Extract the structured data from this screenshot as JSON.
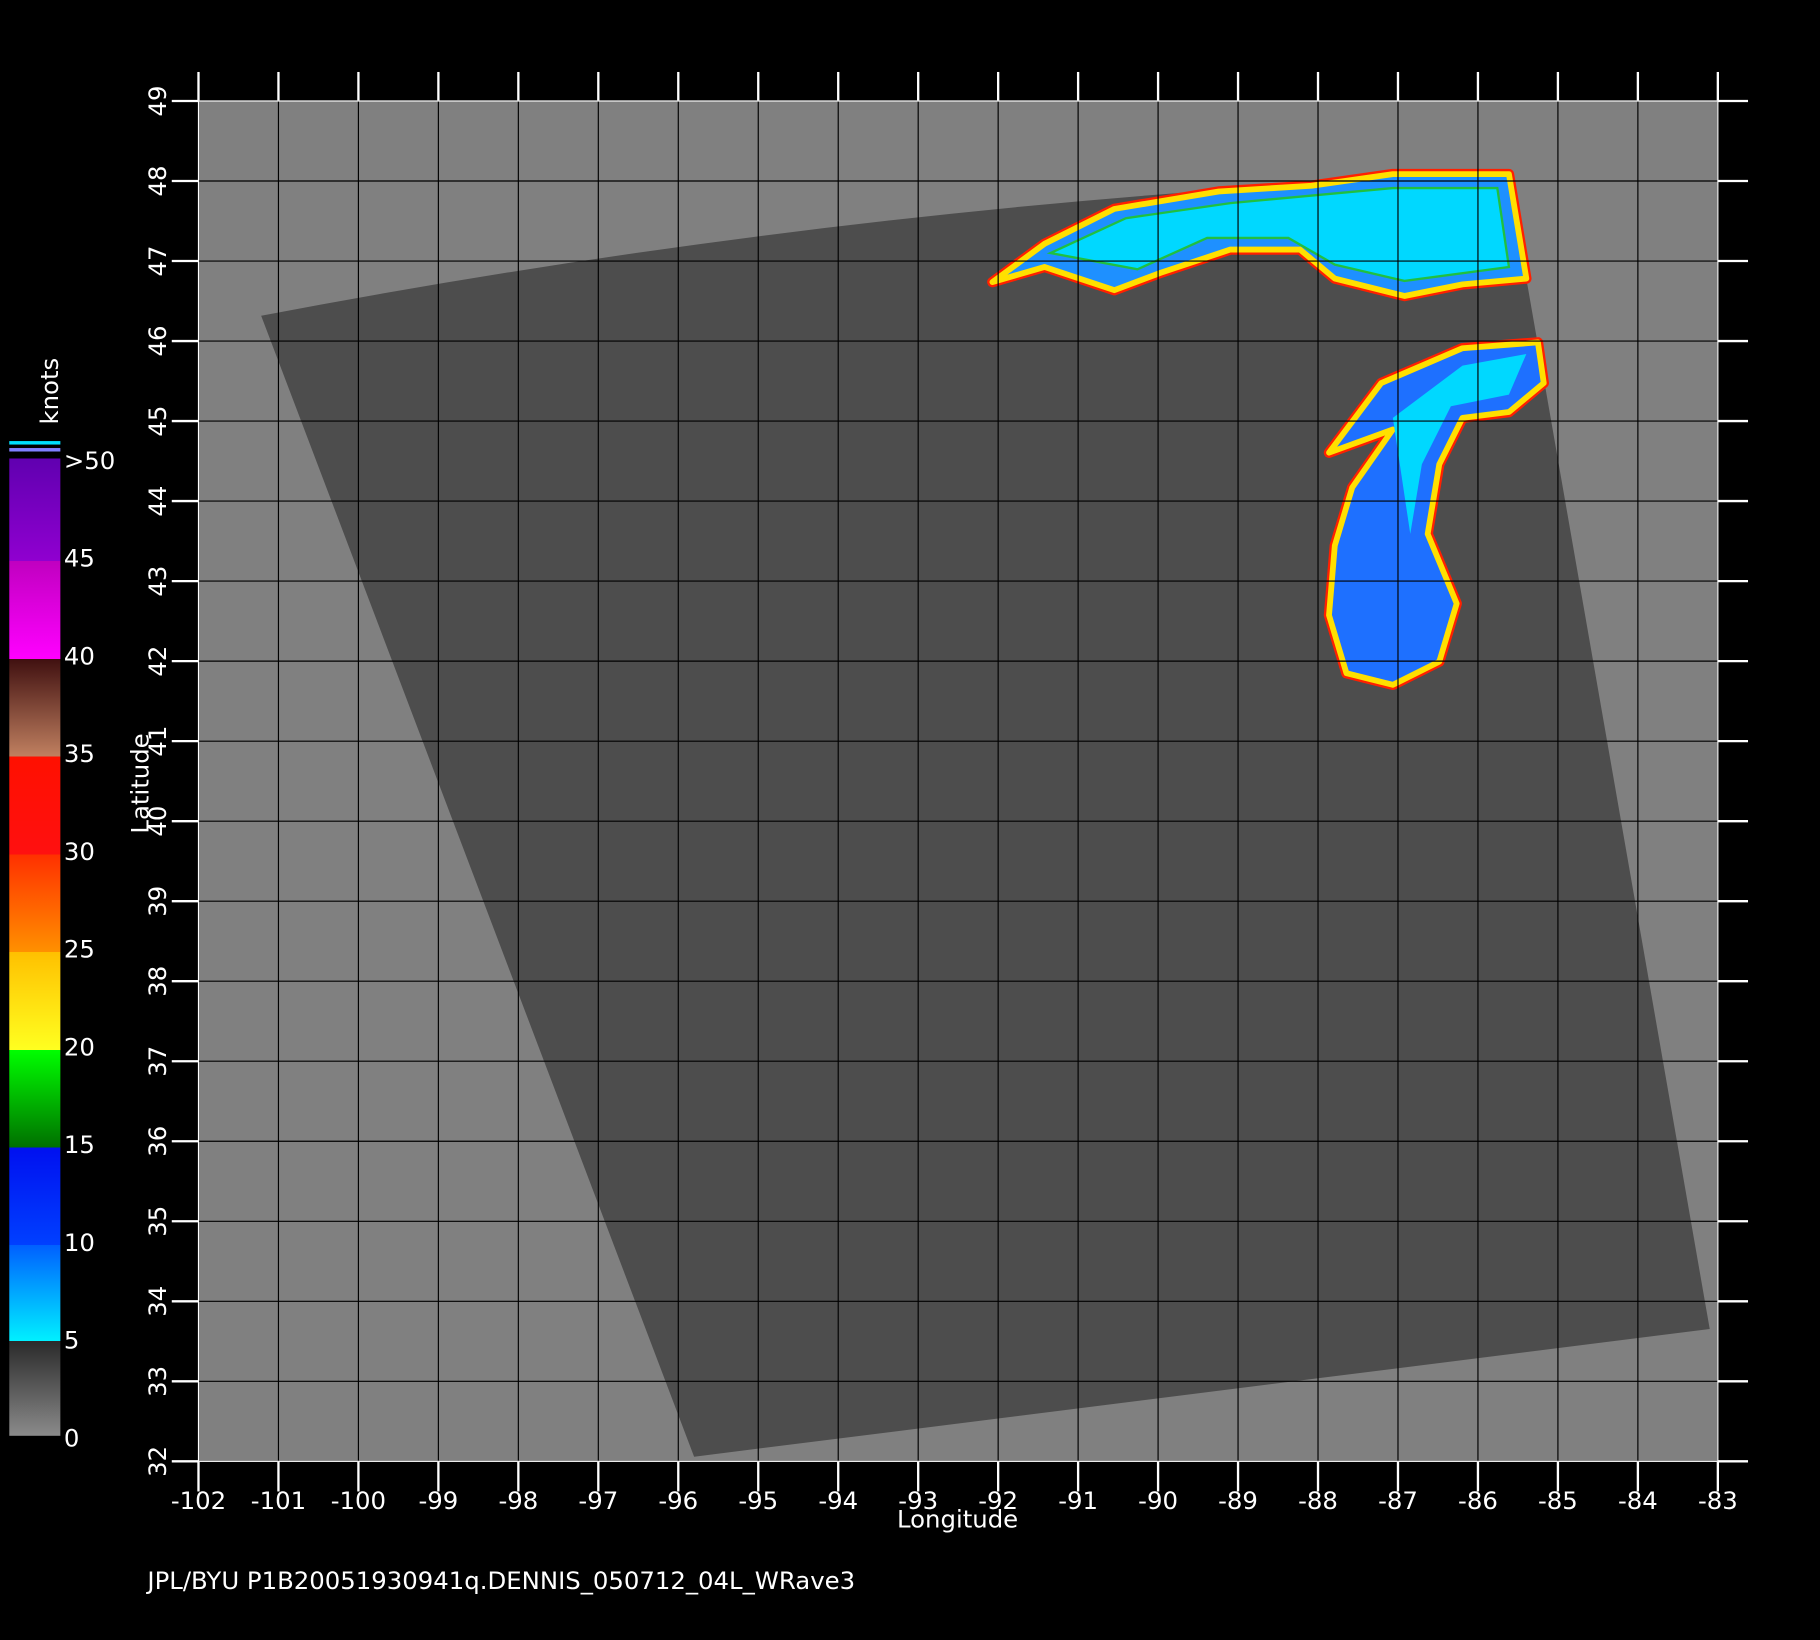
{
  "chart_data": {
    "type": "map",
    "xlabel": "Longitude",
    "ylabel": "Latitude",
    "xlim": [
      -102,
      -83
    ],
    "ylim": [
      32,
      49
    ],
    "xticks": [
      -102,
      -101,
      -100,
      -99,
      -98,
      -97,
      -96,
      -95,
      -94,
      -93,
      -92,
      -91,
      -90,
      -89,
      -88,
      -87,
      -86,
      -85,
      -84,
      -83
    ],
    "yticks": [
      32,
      33,
      34,
      35,
      36,
      37,
      38,
      39,
      40,
      41,
      42,
      43,
      44,
      45,
      46,
      47,
      48,
      49
    ],
    "grid": true,
    "colorbar": {
      "label": "knots",
      "lim": [
        0,
        50
      ],
      "ticks": [
        0,
        5,
        10,
        15,
        20,
        25,
        30,
        35,
        40,
        45,
        {
          "value": 50,
          "label": ">50"
        }
      ]
    },
    "footer": "JPL/BYU  P1B20051930941q.DENNIS_050712_04L_WRave3"
  }
}
